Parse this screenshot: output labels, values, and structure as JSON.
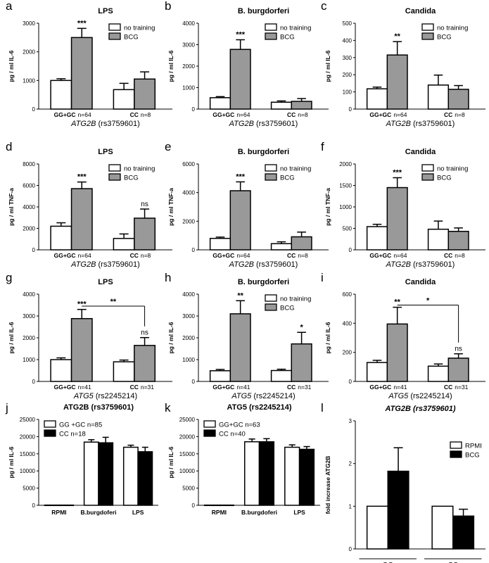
{
  "chart_data": [
    {
      "panel": "a",
      "title": "LPS",
      "title_italic": false,
      "type": "bar",
      "ylabel": "pg / ml IL-6",
      "ylim": [
        0,
        3000
      ],
      "yticks": [
        "0",
        "1000",
        "2000",
        "3000"
      ],
      "groups": [
        {
          "label": "GG+GC",
          "n": "n=64"
        },
        {
          "label": "CC",
          "n": "n=8"
        }
      ],
      "gene": "ATG2B",
      "snp": "(rs3759601)",
      "series": [
        {
          "name": "no training",
          "color": "#ffffff",
          "values": [
            1000,
            680
          ],
          "errors": [
            60,
            220
          ]
        },
        {
          "name": "BCG",
          "color": "#999999",
          "values": [
            2500,
            1050
          ],
          "errors": [
            320,
            250
          ]
        }
      ],
      "annotations": [
        {
          "text": "***",
          "group": 0,
          "series": 1
        }
      ],
      "legend": "top-right"
    },
    {
      "panel": "b",
      "title": "B. burgdorferi",
      "title_italic": false,
      "type": "bar",
      "ylabel": "pg / ml IL-6",
      "ylim": [
        0,
        4000
      ],
      "yticks": [
        "0",
        "1000",
        "2000",
        "3000",
        "4000"
      ],
      "groups": [
        {
          "label": "GG+GC",
          "n": "n=64"
        },
        {
          "label": "CC",
          "n": "n=8"
        }
      ],
      "gene": "ATG2B",
      "snp": "(rs3759601)",
      "series": [
        {
          "name": "no training",
          "color": "#ffffff",
          "values": [
            530,
            320
          ],
          "errors": [
            50,
            60
          ]
        },
        {
          "name": "BCG",
          "color": "#999999",
          "values": [
            2780,
            360
          ],
          "errors": [
            450,
            130
          ]
        }
      ],
      "annotations": [
        {
          "text": "***",
          "group": 0,
          "series": 1
        }
      ],
      "legend": "top-right"
    },
    {
      "panel": "c",
      "title": "Candida",
      "title_italic": false,
      "type": "bar",
      "ylabel": "pg / ml IL-6",
      "ylim": [
        0,
        500
      ],
      "yticks": [
        "0",
        "100",
        "200",
        "300",
        "400",
        "500"
      ],
      "groups": [
        {
          "label": "GG+GC",
          "n": "n=64"
        },
        {
          "label": "CC",
          "n": "n=8"
        }
      ],
      "gene": "ATG2B",
      "snp": "(rs3759601)",
      "series": [
        {
          "name": "no training",
          "color": "#ffffff",
          "values": [
            118,
            140
          ],
          "errors": [
            10,
            58
          ]
        },
        {
          "name": "BCG",
          "color": "#999999",
          "values": [
            315,
            115
          ],
          "errors": [
            78,
            22
          ]
        }
      ],
      "annotations": [
        {
          "text": "**",
          "group": 0,
          "series": 1
        }
      ],
      "legend": "top-right"
    },
    {
      "panel": "d",
      "title": "LPS",
      "title_italic": false,
      "type": "bar",
      "ylabel": "pg / ml TNF-a",
      "ylim": [
        0,
        8000
      ],
      "yticks": [
        "0",
        "2000",
        "4000",
        "6000",
        "8000"
      ],
      "groups": [
        {
          "label": "GG+GC",
          "n": "n=64"
        },
        {
          "label": "CC",
          "n": "n=8"
        }
      ],
      "gene": "ATG2B",
      "snp": "(rs3759601)",
      "series": [
        {
          "name": "no training",
          "color": "#ffffff",
          "values": [
            2200,
            1060
          ],
          "errors": [
            320,
            420
          ]
        },
        {
          "name": "BCG",
          "color": "#999999",
          "values": [
            5700,
            2950
          ],
          "errors": [
            620,
            850
          ]
        }
      ],
      "annotations": [
        {
          "text": "***",
          "group": 0,
          "series": 1
        },
        {
          "text": "ns",
          "group": 1,
          "series": 1
        }
      ],
      "legend": "top-right"
    },
    {
      "panel": "e",
      "title": "B. burgdorferi",
      "title_italic": false,
      "type": "bar",
      "ylabel": "pg / ml TNF-a",
      "ylim": [
        0,
        6000
      ],
      "yticks": [
        "0",
        "2000",
        "4000",
        "6000"
      ],
      "groups": [
        {
          "label": "GG+GC",
          "n": "n=64"
        },
        {
          "label": "CC",
          "n": "n=8"
        }
      ],
      "gene": "ATG2B",
      "snp": "(rs3759601)",
      "series": [
        {
          "name": "no training",
          "color": "#ffffff",
          "values": [
            800,
            430
          ],
          "errors": [
            90,
            130
          ]
        },
        {
          "name": "BCG",
          "color": "#999999",
          "values": [
            4130,
            910
          ],
          "errors": [
            620,
            330
          ]
        }
      ],
      "annotations": [
        {
          "text": "***",
          "group": 0,
          "series": 1
        }
      ],
      "legend": "top-right"
    },
    {
      "panel": "f",
      "title": "Candida",
      "title_italic": false,
      "type": "bar",
      "ylabel": "pg / ml TNF-a",
      "ylim": [
        0,
        2000
      ],
      "yticks": [
        "0",
        "500",
        "1000",
        "1500",
        "2000"
      ],
      "groups": [
        {
          "label": "GG+GC",
          "n": "n=64"
        },
        {
          "label": "CC",
          "n": "n=8"
        }
      ],
      "gene": "ATG2B",
      "snp": "(rs3759601)",
      "series": [
        {
          "name": "no training",
          "color": "#ffffff",
          "values": [
            540,
            480
          ],
          "errors": [
            55,
            190
          ]
        },
        {
          "name": "BCG",
          "color": "#999999",
          "values": [
            1450,
            430
          ],
          "errors": [
            230,
            80
          ]
        }
      ],
      "annotations": [
        {
          "text": "***",
          "group": 0,
          "series": 1
        }
      ],
      "legend": "top-right"
    },
    {
      "panel": "g",
      "title": "LPS",
      "title_italic": false,
      "type": "bar",
      "ylabel": "pg / ml IL-6",
      "ylim": [
        0,
        4000
      ],
      "yticks": [
        "0",
        "1000",
        "2000",
        "3000",
        "4000"
      ],
      "groups": [
        {
          "label": "GG+GC",
          "n": "n=41"
        },
        {
          "label": "CC",
          "n": "n=31"
        }
      ],
      "gene": "ATG5",
      "snp": "(rs2245214)",
      "series": [
        {
          "name": "no training",
          "color": "#ffffff",
          "values": [
            1000,
            900
          ],
          "errors": [
            80,
            80
          ]
        },
        {
          "name": "BCG",
          "color": "#999999",
          "values": [
            2880,
            1650
          ],
          "errors": [
            420,
            360
          ]
        }
      ],
      "annotations": [
        {
          "text": "***",
          "group": 0,
          "series": 1
        },
        {
          "text": "ns",
          "group": 1,
          "series": 1
        }
      ],
      "bracket": {
        "text": "**",
        "value": 3450
      },
      "legend": "none"
    },
    {
      "panel": "h",
      "title": "B. burgdorferi",
      "title_italic": false,
      "type": "bar",
      "ylabel": "pg / ml IL-6",
      "ylim": [
        0,
        4000
      ],
      "yticks": [
        "0",
        "1000",
        "2000",
        "3000",
        "4000"
      ],
      "groups": [
        {
          "label": "GG+GC",
          "n": "n=41"
        },
        {
          "label": "CC",
          "n": "n=31"
        }
      ],
      "gene": "ATG5",
      "snp": "(rs2245214)",
      "series": [
        {
          "name": "no training",
          "color": "#ffffff",
          "values": [
            490,
            500
          ],
          "errors": [
            60,
            60
          ]
        },
        {
          "name": "BCG",
          "color": "#999999",
          "values": [
            3100,
            1720
          ],
          "errors": [
            600,
            530
          ]
        }
      ],
      "annotations": [
        {
          "text": "**",
          "group": 0,
          "series": 1
        },
        {
          "text": "*",
          "group": 1,
          "series": 1
        }
      ],
      "legend": "top-right"
    },
    {
      "panel": "i",
      "title": "Candida",
      "title_italic": false,
      "type": "bar",
      "ylabel": "pg / ml IL-6",
      "ylim": [
        0,
        600
      ],
      "yticks": [
        "0",
        "200",
        "400",
        "600"
      ],
      "groups": [
        {
          "label": "GG+GC",
          "n": "n=41"
        },
        {
          "label": "CC",
          "n": "n=31"
        }
      ],
      "gene": "ATG5",
      "snp": "(rs2245214)",
      "series": [
        {
          "name": "no training",
          "color": "#ffffff",
          "values": [
            130,
            105
          ],
          "errors": [
            15,
            15
          ]
        },
        {
          "name": "BCG",
          "color": "#999999",
          "values": [
            395,
            160
          ],
          "errors": [
            115,
            30
          ]
        }
      ],
      "annotations": [
        {
          "text": "**",
          "group": 0,
          "series": 1
        },
        {
          "text": "ns",
          "group": 1,
          "series": 1
        }
      ],
      "bracket": {
        "text": "*",
        "value": 525
      },
      "legend": "none"
    },
    {
      "panel": "j",
      "title": "ATG2B (rs3759601)",
      "title_italic": false,
      "type": "bar",
      "ylabel": "pg / ml IL-6",
      "ylim": [
        0,
        25000
      ],
      "yticks": [
        "0",
        "5000",
        "10000",
        "15000",
        "20000",
        "25000"
      ],
      "groups": [
        {
          "label": "RPMI"
        },
        {
          "label": "B.burgdoferi"
        },
        {
          "label": "LPS"
        }
      ],
      "series": [
        {
          "name": "GG +GC n=85",
          "color": "#ffffff",
          "values": [
            60,
            18400,
            16900
          ],
          "errors": [
            0,
            700,
            600
          ]
        },
        {
          "name": "CC n=18",
          "color": "#000000",
          "values": [
            60,
            18200,
            15600
          ],
          "errors": [
            0,
            1600,
            1300
          ]
        }
      ],
      "legend": "top-left"
    },
    {
      "panel": "k",
      "title": "ATG5 (rs2245214)",
      "title_italic": false,
      "type": "bar",
      "ylabel": "pg / ml IL-6",
      "ylim": [
        0,
        25000
      ],
      "yticks": [
        "0",
        "5000",
        "10000",
        "15000",
        "20000",
        "25000"
      ],
      "groups": [
        {
          "label": "RPMI"
        },
        {
          "label": "B.burgdoferi"
        },
        {
          "label": "LPS"
        }
      ],
      "series": [
        {
          "name": "GG+GC n=63",
          "color": "#ffffff",
          "values": [
            60,
            18500,
            16900
          ],
          "errors": [
            0,
            800,
            700
          ]
        },
        {
          "name": "CC n=40",
          "color": "#000000",
          "values": [
            60,
            18500,
            16300
          ],
          "errors": [
            0,
            900,
            800
          ]
        }
      ],
      "legend": "top-left"
    },
    {
      "panel": "l",
      "title": "ATG2B (rs3759601)",
      "title_italic": true,
      "type": "bar",
      "ylabel": "fold increase ATG2B",
      "ylim": [
        0,
        3
      ],
      "yticks": [
        "0",
        "1",
        "2",
        "3"
      ],
      "groups": [
        {
          "label": "GG"
        },
        {
          "label": "CC"
        }
      ],
      "series": [
        {
          "name": "RPMI",
          "color": "#ffffff",
          "values": [
            1.0,
            1.0
          ],
          "errors": [
            0,
            0
          ]
        },
        {
          "name": "BCG",
          "color": "#000000",
          "values": [
            1.82,
            0.77
          ],
          "errors": [
            0.55,
            0.16
          ]
        }
      ],
      "legend": "top-right",
      "group_underline": true
    }
  ]
}
